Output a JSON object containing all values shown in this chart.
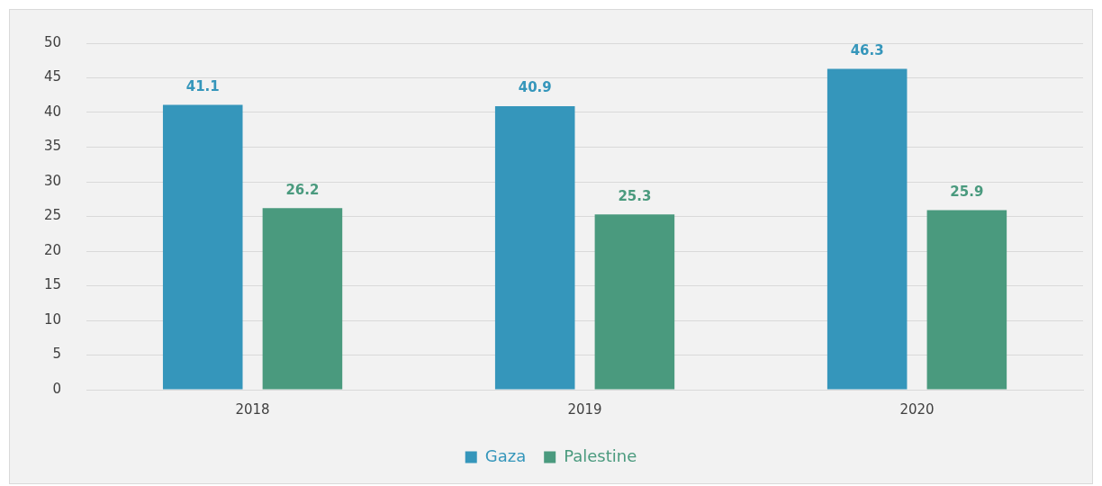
{
  "chart_data": {
    "type": "bar",
    "categories": [
      "2018",
      "2019",
      "2020"
    ],
    "series": [
      {
        "name": "Gaza",
        "color": "#3596bb",
        "values": [
          41.1,
          40.9,
          46.3
        ]
      },
      {
        "name": "Palestine",
        "color": "#4a9a7e",
        "values": [
          26.2,
          25.3,
          25.9
        ]
      }
    ],
    "ylim": [
      0,
      50
    ],
    "yticks": [
      0,
      5,
      10,
      15,
      20,
      25,
      30,
      35,
      40,
      45,
      50
    ],
    "grid": "y",
    "legend": "bottom",
    "data_labels": true
  }
}
